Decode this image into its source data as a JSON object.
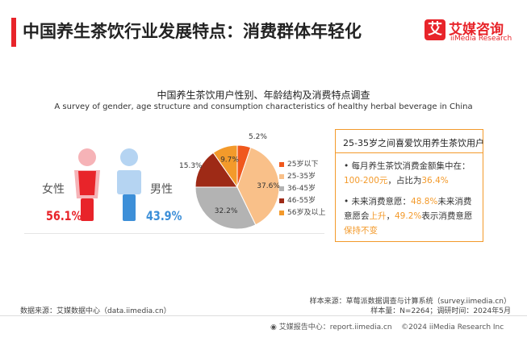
{
  "header": {
    "title": "中国养生茶饮行业发展特点：消费群体年轻化",
    "logo_mark": "艾",
    "logo_cn": "艾媒咨询",
    "logo_en": "iiMedia Research"
  },
  "chart_data": [
    {
      "type": "bar",
      "title": "中国养生茶饮用户性别、年龄结构及消费特点调查",
      "subtitle": "A survey of gender, age structure and consumption characteristics of healthy herbal beverage in China",
      "categories": [
        "女性",
        "男性"
      ],
      "values": [
        56.1,
        43.9
      ],
      "value_labels": [
        "56.1%",
        "43.9%"
      ],
      "colors": [
        "#e8242a",
        "#3d8fd8"
      ]
    },
    {
      "type": "pie",
      "categories": [
        "25岁以下",
        "25-35岁",
        "36-45岁",
        "46-55岁",
        "56岁及以上"
      ],
      "values": [
        5.2,
        37.6,
        32.2,
        15.3,
        9.7
      ],
      "value_labels": [
        "5.2%",
        "37.6%",
        "32.2%",
        "15.3%",
        "9.7%"
      ],
      "colors": [
        "#f0581d",
        "#f9c089",
        "#b3b3b3",
        "#9e2a16",
        "#f39a2b"
      ],
      "legend_position": "right"
    }
  ],
  "infobox": {
    "heading": "25-35岁之间喜爱饮用养生茶饮用户",
    "bullet1": {
      "text_a": "每月养生茶饮消费金额集中在：",
      "hl_a": "100-200元",
      "text_b": "，占比为",
      "hl_b": "36.4%"
    },
    "bullet2": {
      "text_a": "未来消费意愿：",
      "hl_a": "48.8%",
      "text_b": "未来消费意愿会",
      "hl_b": "上升",
      "text_c": "，",
      "hl_c": "49.2%",
      "text_d": "表示消费意愿",
      "hl_d": "保持不变"
    }
  },
  "footer": {
    "source": "数据来源：艾媒数据中心（data.iimedia.cn）",
    "sample_source": "样本来源：草莓派数据调查与计算系统（survey.iimedia.cn）",
    "sample_size": "样本量：N=2264；调研时间：2024年5月",
    "report": "艾媒报告中心：report.iimedia.cn",
    "copyright": "©2024  iiMedia Research  Inc"
  }
}
